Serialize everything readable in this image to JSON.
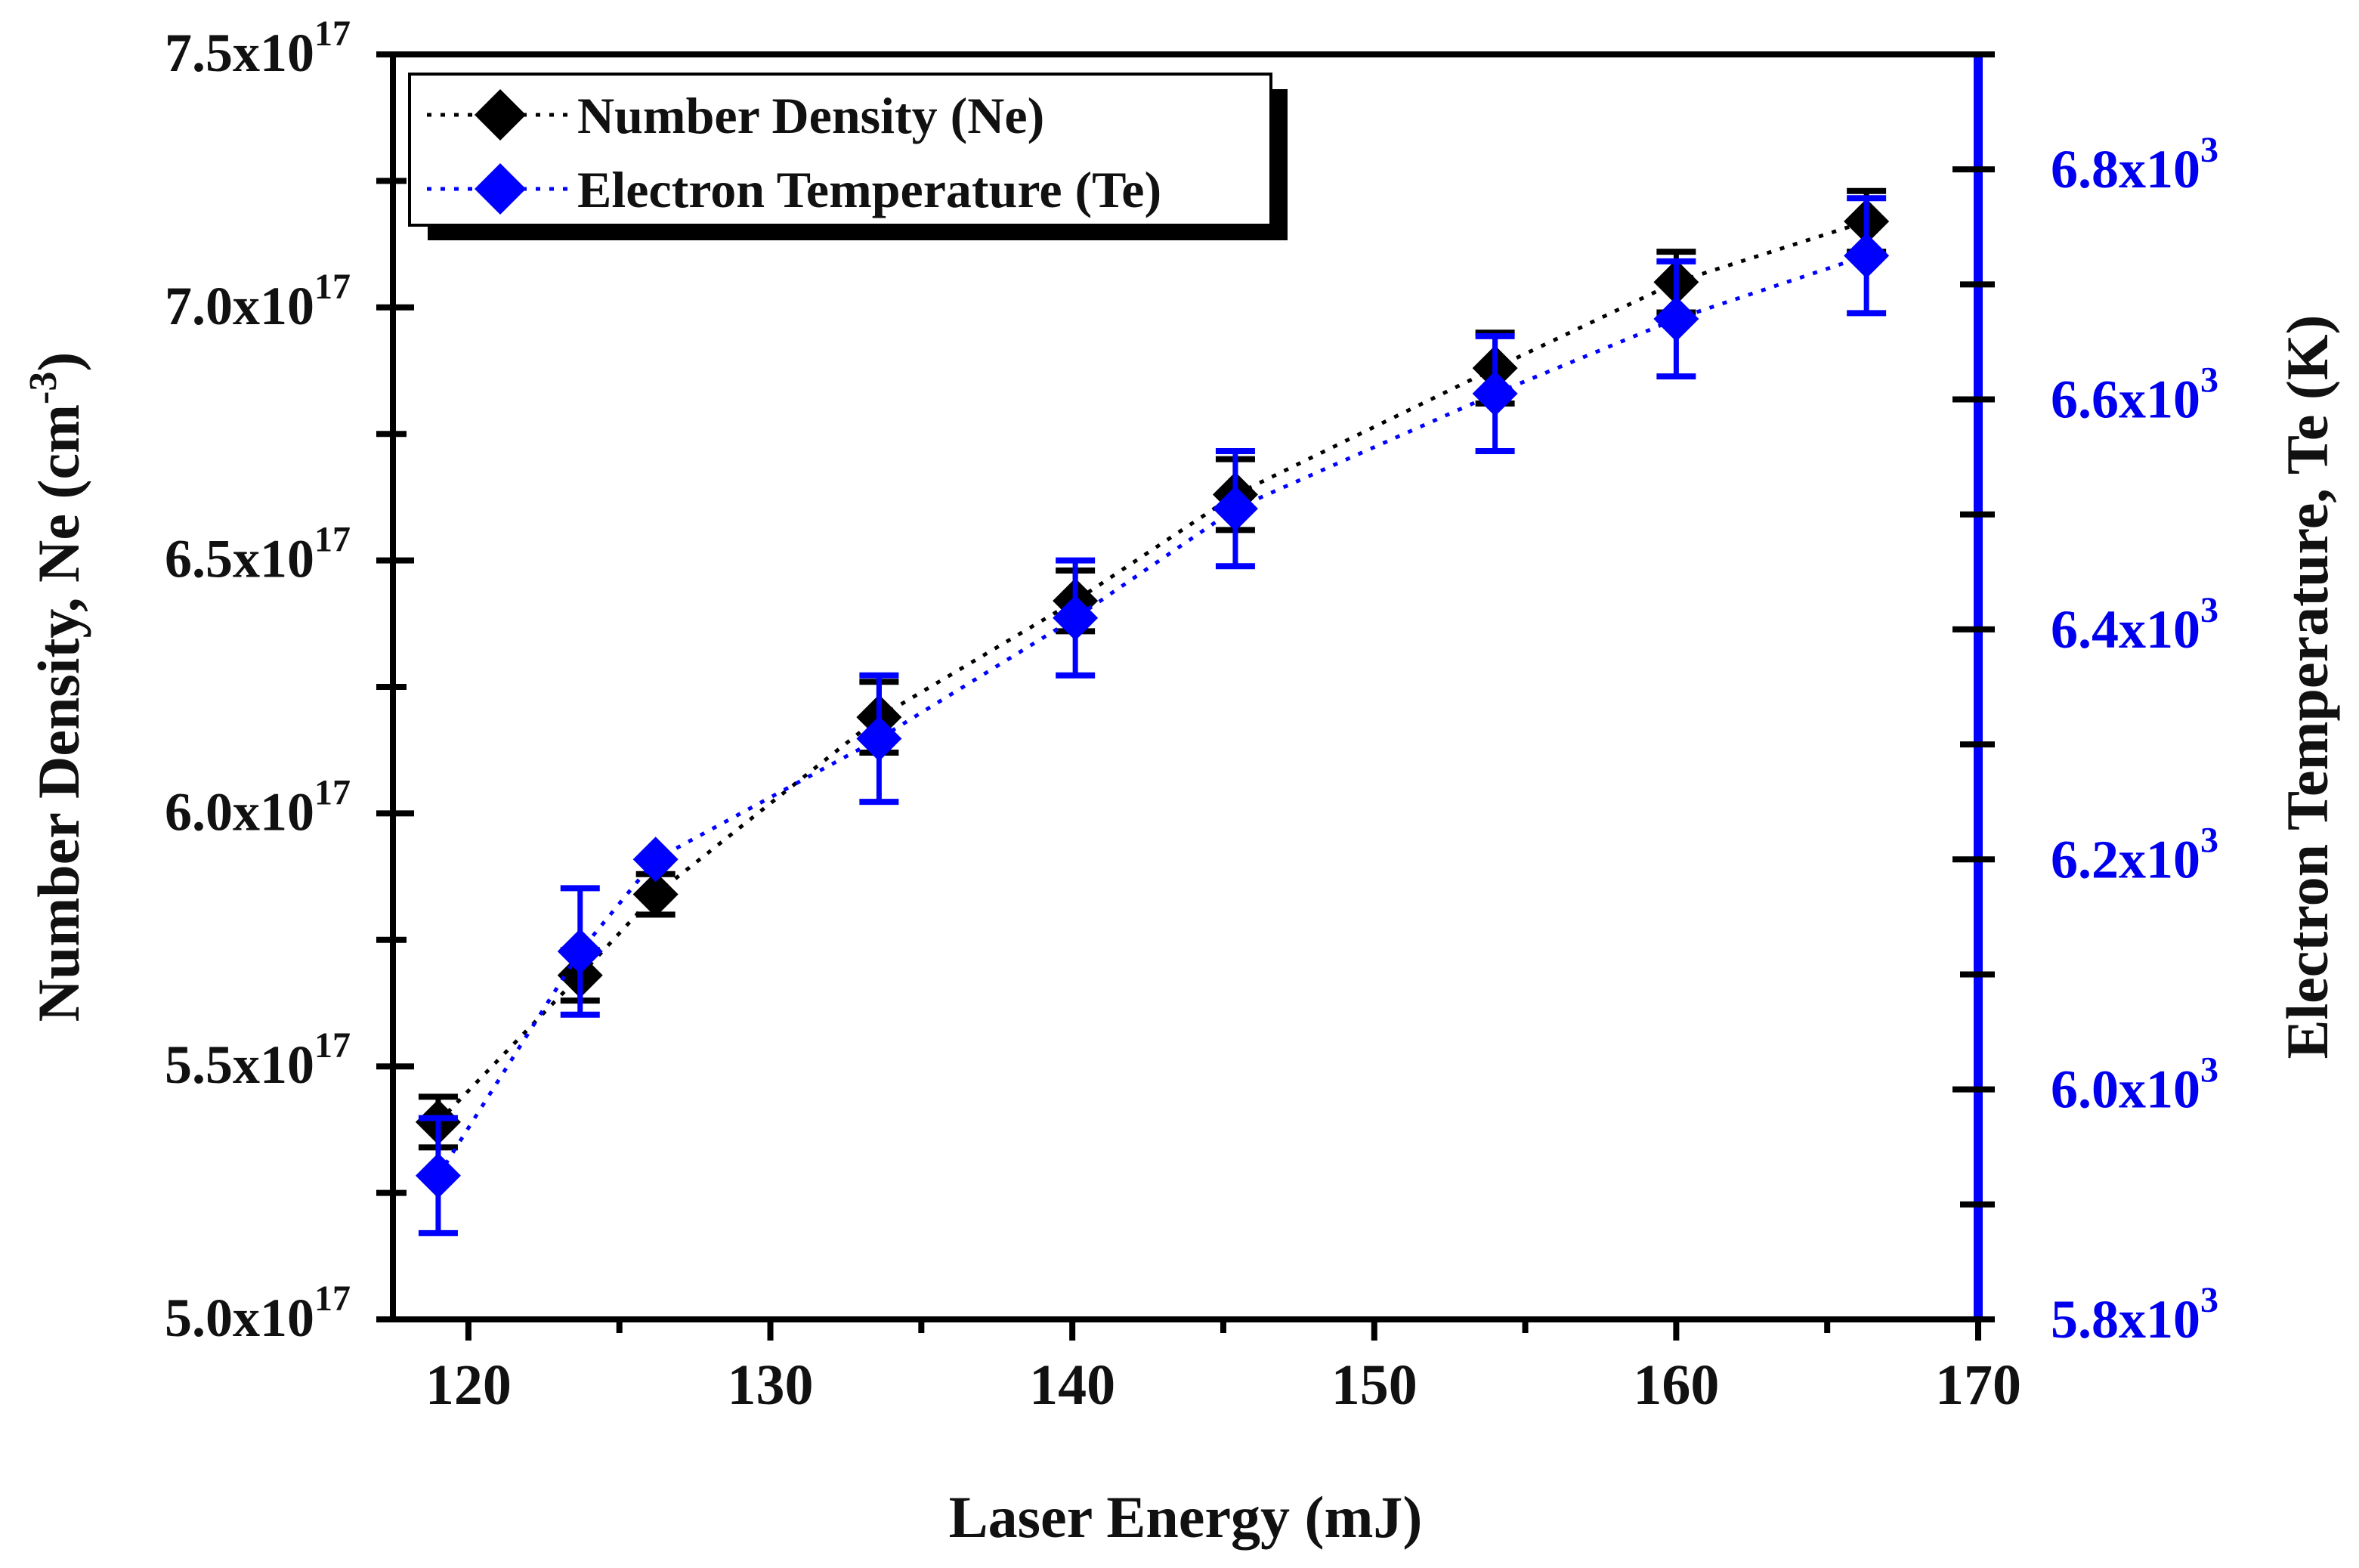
{
  "chart_data": {
    "type": "scatter",
    "title": "",
    "xlabel": "Laser Energy (mJ)",
    "ylabel": "Number Density, Ne (cm-3)",
    "ylabel_parts": {
      "main": "Number Density, Ne (cm",
      "sup": "-3",
      "close": ")"
    },
    "y2label": "Electron Temperature, Te (K)",
    "xlim": [
      117.5,
      170
    ],
    "ylim": [
      5e+17,
      7.5e+17
    ],
    "y2lim": [
      5800.0,
      6900.0
    ],
    "x_ticks": [
      {
        "value": 120,
        "label": "120"
      },
      {
        "value": 130,
        "label": "130"
      },
      {
        "value": 140,
        "label": "140"
      },
      {
        "value": 150,
        "label": "150"
      },
      {
        "value": 160,
        "label": "160"
      },
      {
        "value": 170,
        "label": "170"
      }
    ],
    "y_ticks": [
      {
        "value": 5e+17,
        "mantissa": "5.0x10",
        "exp": "17"
      },
      {
        "value": 5.5e+17,
        "mantissa": "5.5x10",
        "exp": "17"
      },
      {
        "value": 6e+17,
        "mantissa": "6.0x10",
        "exp": "17"
      },
      {
        "value": 6.5e+17,
        "mantissa": "6.5x10",
        "exp": "17"
      },
      {
        "value": 7e+17,
        "mantissa": "7.0x10",
        "exp": "17"
      },
      {
        "value": 7.5e+17,
        "mantissa": "7.5x10",
        "exp": "17"
      }
    ],
    "y2_ticks": [
      {
        "value": 5800,
        "mantissa": "5.8x10",
        "exp": "3"
      },
      {
        "value": 6000,
        "mantissa": "6.0x10",
        "exp": "3"
      },
      {
        "value": 6200,
        "mantissa": "6.2x10",
        "exp": "3"
      },
      {
        "value": 6400,
        "mantissa": "6.4x10",
        "exp": "3"
      },
      {
        "value": 6600,
        "mantissa": "6.6x10",
        "exp": "3"
      },
      {
        "value": 6800,
        "mantissa": "6.8x10",
        "exp": "3"
      }
    ],
    "series": [
      {
        "name": "Number Density (Ne)",
        "axis": "left",
        "color": "#000000",
        "marker": "diamond",
        "line": "dotted",
        "x": [
          119.0,
          123.7,
          126.2,
          133.6,
          140.1,
          145.4,
          154.0,
          160.0,
          166.3
        ],
        "y": [
          5.39e+17,
          5.68e+17,
          5.84e+17,
          6.19e+17,
          6.42e+17,
          6.63e+17,
          6.88e+17,
          7.05e+17,
          7.17e+17
        ],
        "err": [
          5000000000000000.0,
          5000000000000000.0,
          4000000000000000.0,
          7000000000000000.0,
          6000000000000000.0,
          7000000000000000.0,
          7000000000000000.0,
          6000000000000000.0,
          6000000000000000.0
        ]
      },
      {
        "name": "Electron Temperature (Te)",
        "axis": "right",
        "color": "#0000ff",
        "marker": "diamond",
        "line": "dotted",
        "x": [
          119.0,
          123.7,
          126.2,
          133.6,
          140.1,
          145.4,
          154.0,
          160.0,
          166.3
        ],
        "y": [
          5925,
          6120,
          6200,
          6305,
          6410,
          6505,
          6605,
          6670,
          6725
        ],
        "err": [
          50,
          55,
          0,
          55,
          50,
          50,
          50,
          50,
          50
        ]
      }
    ],
    "legend": {
      "position": "top-left",
      "entries": [
        "Number Density (Ne)",
        "Electron Temperature (Te)"
      ]
    },
    "grid": false
  }
}
